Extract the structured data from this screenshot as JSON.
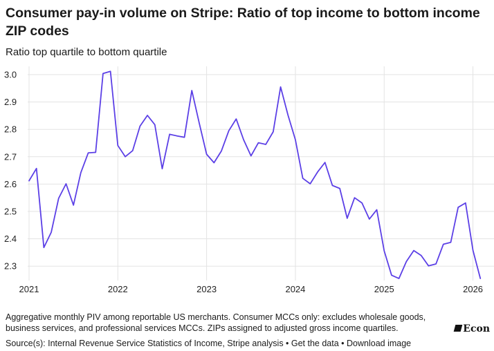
{
  "chart_data": {
    "type": "line",
    "title": "Consumer pay-in volume on Stripe: Ratio of top income to bottom income ZIP codes",
    "subtitle": "Ratio top quartile to bottom quartile",
    "xlabel": "",
    "ylabel": "Ratio top quartile to bottom quartile",
    "ylim": [
      2.25,
      3.0
    ],
    "yticks": [
      "3.0",
      "2.9",
      "2.8",
      "2.7",
      "2.6",
      "2.5",
      "2.4",
      "2.3"
    ],
    "ytick_values": [
      3.0,
      2.9,
      2.8,
      2.7,
      2.6,
      2.5,
      2.4,
      2.3
    ],
    "xticks": [
      "2021",
      "2022",
      "2023",
      "2024",
      "2025",
      "2026"
    ],
    "xtick_values": [
      2021,
      2022,
      2023,
      2024,
      2025,
      2026
    ],
    "xlim": [
      2021,
      2026.167
    ],
    "grid": true,
    "line_color": "#5b3fe6",
    "series": [
      {
        "name": "Ratio top quartile to bottom quartile",
        "x_start": 2021,
        "x_step_months": 1,
        "values": [
          2.612,
          2.657,
          2.368,
          2.424,
          2.548,
          2.601,
          2.523,
          2.642,
          2.714,
          2.716,
          3.004,
          3.012,
          2.741,
          2.7,
          2.722,
          2.812,
          2.851,
          2.817,
          2.656,
          2.782,
          2.776,
          2.771,
          2.942,
          2.823,
          2.709,
          2.678,
          2.721,
          2.795,
          2.838,
          2.762,
          2.703,
          2.751,
          2.745,
          2.791,
          2.955,
          2.852,
          2.762,
          2.621,
          2.601,
          2.644,
          2.679,
          2.595,
          2.584,
          2.475,
          2.55,
          2.531,
          2.472,
          2.506,
          2.356,
          2.267,
          2.255,
          2.317,
          2.357,
          2.339,
          2.301,
          2.308,
          2.38,
          2.387,
          2.515,
          2.531,
          2.358,
          2.255
        ]
      }
    ]
  },
  "notes": "Aggregative monthly PIV among reportable US merchants. Consumer MCCs only: excludes wholesale goods, business services, and professional services MCCs. ZIPs assigned to adjusted gross income quartiles.",
  "source": "Source(s): Internal Revenue Service Statistics of Income, Stripe analysis • Get the data • Download image",
  "logo_text": "Econ"
}
